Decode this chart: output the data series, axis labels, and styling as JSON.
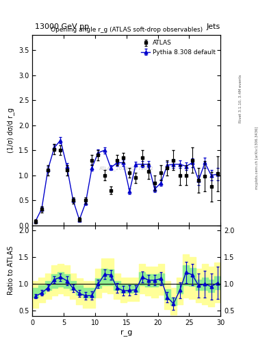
{
  "title_left": "13000 GeV pp",
  "title_right": "Jets",
  "plot_title": "Opening angle r_g (ATLAS soft-drop observables)",
  "xlabel": "r_g",
  "ylabel_main": "(1/σ) dσ/d r_g",
  "ylabel_ratio": "Ratio to ATLAS",
  "right_label_top": "Rivet 3.1.10, 3.4M events",
  "right_label_bot": "mcplots.cern.ch [arXiv:1306.3436]",
  "watermark": "ATLAS_2019_I1772062",
  "atlas_x": [
    0.5,
    1.5,
    2.5,
    3.5,
    4.5,
    5.5,
    6.5,
    7.5,
    8.5,
    9.5,
    10.5,
    11.5,
    12.5,
    13.5,
    14.5,
    15.5,
    16.5,
    17.5,
    18.5,
    19.5,
    20.5,
    21.5,
    22.5,
    23.5,
    24.5,
    25.5,
    26.5,
    27.5,
    28.5,
    29.5
  ],
  "atlas_y": [
    0.08,
    0.32,
    1.1,
    1.52,
    1.5,
    1.1,
    0.5,
    0.12,
    0.5,
    1.3,
    1.4,
    1.0,
    0.7,
    1.3,
    1.35,
    1.05,
    0.95,
    1.35,
    1.08,
    0.85,
    1.05,
    1.15,
    1.3,
    1.0,
    1.0,
    1.3,
    0.9,
    0.98,
    0.77,
    1.03
  ],
  "atlas_yerr": [
    0.04,
    0.06,
    0.1,
    0.1,
    0.1,
    0.1,
    0.06,
    0.04,
    0.06,
    0.1,
    0.1,
    0.1,
    0.08,
    0.1,
    0.1,
    0.1,
    0.1,
    0.15,
    0.15,
    0.15,
    0.15,
    0.15,
    0.2,
    0.2,
    0.2,
    0.25,
    0.25,
    0.3,
    0.3,
    0.35
  ],
  "pythia_x": [
    0.5,
    1.5,
    2.5,
    3.5,
    4.5,
    5.5,
    6.5,
    7.5,
    8.5,
    9.5,
    10.5,
    11.5,
    12.5,
    13.5,
    14.5,
    15.5,
    16.5,
    17.5,
    18.5,
    19.5,
    20.5,
    21.5,
    22.5,
    23.5,
    24.5,
    25.5,
    26.5,
    27.5,
    28.5,
    29.5
  ],
  "pythia_y": [
    0.08,
    0.33,
    1.12,
    1.55,
    1.7,
    1.18,
    0.5,
    0.11,
    0.45,
    1.15,
    1.45,
    1.5,
    1.15,
    1.25,
    1.25,
    0.68,
    1.22,
    1.22,
    1.22,
    0.72,
    0.85,
    1.2,
    1.22,
    1.22,
    1.18,
    1.25,
    0.9,
    1.25,
    1.0,
    1.02
  ],
  "pythia_yerr": [
    0.02,
    0.03,
    0.05,
    0.06,
    0.06,
    0.06,
    0.04,
    0.02,
    0.04,
    0.06,
    0.06,
    0.06,
    0.05,
    0.06,
    0.06,
    0.05,
    0.05,
    0.06,
    0.06,
    0.06,
    0.06,
    0.07,
    0.08,
    0.08,
    0.08,
    0.09,
    0.09,
    0.1,
    0.1,
    0.12
  ],
  "ratio_x": [
    0.5,
    1.5,
    2.5,
    3.5,
    4.5,
    5.5,
    6.5,
    7.5,
    8.5,
    9.5,
    10.5,
    11.5,
    12.5,
    13.5,
    14.5,
    15.5,
    16.5,
    17.5,
    18.5,
    19.5,
    20.5,
    21.5,
    22.5,
    23.5,
    24.5,
    25.5,
    26.5,
    27.5,
    28.5,
    29.5
  ],
  "ratio_y": [
    0.77,
    0.83,
    0.93,
    1.08,
    1.13,
    1.06,
    0.92,
    0.82,
    0.78,
    0.78,
    1.0,
    1.18,
    1.17,
    0.93,
    0.87,
    0.88,
    0.89,
    1.13,
    1.07,
    1.07,
    1.1,
    0.75,
    0.63,
    0.88,
    1.22,
    1.17,
    0.97,
    1.0,
    0.95,
    1.02
  ],
  "ratio_yerr": [
    0.04,
    0.05,
    0.06,
    0.07,
    0.07,
    0.08,
    0.07,
    0.06,
    0.07,
    0.08,
    0.08,
    0.09,
    0.09,
    0.09,
    0.09,
    0.1,
    0.08,
    0.1,
    0.1,
    0.1,
    0.12,
    0.1,
    0.12,
    0.15,
    0.2,
    0.2,
    0.22,
    0.25,
    0.25,
    0.3
  ],
  "bin_edges": [
    0,
    1,
    2,
    3,
    4,
    5,
    6,
    7,
    8,
    9,
    10,
    11,
    12,
    13,
    14,
    15,
    16,
    17,
    18,
    19,
    20,
    21,
    22,
    23,
    24,
    25,
    26,
    27,
    28,
    29,
    30
  ],
  "green_lo": [
    0.75,
    0.82,
    0.88,
    0.92,
    0.95,
    0.92,
    0.88,
    0.8,
    0.75,
    0.75,
    0.92,
    0.98,
    0.97,
    0.88,
    0.83,
    0.84,
    0.85,
    0.98,
    0.95,
    0.95,
    0.97,
    0.7,
    0.6,
    0.82,
    0.97,
    0.96,
    0.88,
    0.88,
    0.85,
    0.9
  ],
  "green_hi": [
    0.92,
    0.97,
    1.05,
    1.18,
    1.22,
    1.18,
    1.05,
    0.97,
    0.92,
    0.92,
    1.1,
    1.28,
    1.27,
    1.05,
    1.0,
    1.0,
    1.0,
    1.22,
    1.18,
    1.18,
    1.2,
    0.9,
    0.75,
    1.0,
    1.35,
    1.3,
    1.08,
    1.12,
    1.08,
    1.15
  ],
  "yellow_lo": [
    0.55,
    0.65,
    0.72,
    0.78,
    0.82,
    0.78,
    0.72,
    0.62,
    0.55,
    0.55,
    0.75,
    0.85,
    0.82,
    0.72,
    0.65,
    0.68,
    0.68,
    0.82,
    0.78,
    0.75,
    0.8,
    0.52,
    0.42,
    0.62,
    0.75,
    0.72,
    0.65,
    0.62,
    0.58,
    0.65
  ],
  "yellow_hi": [
    1.05,
    1.12,
    1.2,
    1.35,
    1.38,
    1.35,
    1.2,
    1.1,
    1.05,
    1.05,
    1.28,
    1.48,
    1.48,
    1.2,
    1.12,
    1.12,
    1.12,
    1.38,
    1.32,
    1.32,
    1.38,
    1.05,
    0.92,
    1.12,
    1.55,
    1.5,
    1.28,
    1.38,
    1.32,
    1.4
  ],
  "main_ylim": [
    0,
    3.8
  ],
  "ratio_ylim": [
    0.4,
    2.1
  ],
  "xlim": [
    0,
    30
  ],
  "atlas_color": "#000000",
  "pythia_color": "#0000cc",
  "green_color": "#90EE90",
  "yellow_color": "#FFFF99",
  "bg_color": "#ffffff"
}
